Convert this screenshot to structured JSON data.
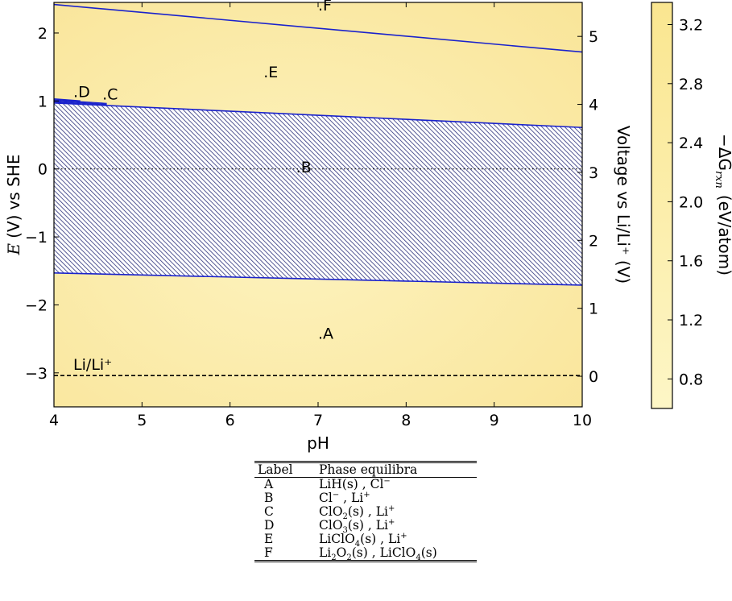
{
  "chart_data": {
    "type": "area",
    "xlabel": "pH",
    "ylabel_main": "vs SHE",
    "ylabel_italic": "E",
    "ylabel_unit": "(V)",
    "ylabel_right": "Voltage vs Li/Li⁺ (V)",
    "colorbar_label_prefix": "−ΔG",
    "colorbar_label_sub": "rxn",
    "colorbar_label_suffix": "(eV/atom)",
    "xlim": [
      4,
      10
    ],
    "ylim": [
      -3.5,
      2.45
    ],
    "y2lim": [
      -0.45,
      5.5
    ],
    "colorbar_range": [
      0.6,
      3.35
    ],
    "xticks": [
      4,
      5,
      6,
      7,
      8,
      9,
      10
    ],
    "xtick_labels": [
      "4",
      "5",
      "6",
      "7",
      "8",
      "9",
      "10"
    ],
    "yticks": [
      -3,
      -2,
      -1,
      0,
      1,
      2
    ],
    "ytick_labels": [
      "−3",
      "−2",
      "−1",
      "0",
      "1",
      "2"
    ],
    "y2ticks": [
      0,
      1,
      2,
      3,
      4,
      5
    ],
    "y2tick_labels": [
      "0",
      "1",
      "2",
      "3",
      "4",
      "5"
    ],
    "colorbar_ticks": [
      0.8,
      1.2,
      1.6,
      2.0,
      2.4,
      2.8,
      3.2
    ],
    "colorbar_tick_labels": [
      "0.8",
      "1.2",
      "1.6",
      "2.0",
      "2.4",
      "2.8",
      "3.2"
    ],
    "colors": {
      "background": "#fbeeac",
      "boundary": "#1a22cc",
      "hatch": "#2a2f7a",
      "colorbar_top": "#fae690",
      "colorbar_bottom": "#fdf6c6"
    },
    "boundaries": [
      {
        "name": "E/F",
        "x": [
          4,
          10
        ],
        "y": [
          2.42,
          1.72
        ]
      },
      {
        "name": "D/E",
        "x": [
          4,
          4.3
        ],
        "y": [
          1.03,
          1.0
        ]
      },
      {
        "name": "C/E",
        "x": [
          4,
          4.6
        ],
        "y": [
          1.0,
          0.95
        ]
      },
      {
        "name": "B/E",
        "x": [
          4,
          10
        ],
        "y": [
          0.97,
          0.61
        ]
      },
      {
        "name": "A/B",
        "x": [
          4,
          10
        ],
        "y": [
          -1.53,
          -1.71
        ]
      }
    ],
    "hatched_region": {
      "label": "B",
      "x": [
        4,
        10
      ],
      "y_top": [
        0.97,
        0.61
      ],
      "y_bottom": [
        -1.53,
        -1.71
      ]
    },
    "reference_lines": [
      {
        "name": "zero",
        "y": 0,
        "style": "dotted"
      },
      {
        "name": "li",
        "y": -3.04,
        "style": "dashed",
        "label": "Li/Li⁺"
      }
    ],
    "region_labels": [
      {
        "text": ".A",
        "x": 7.0,
        "y": -2.5
      },
      {
        "text": ".B",
        "x": 6.75,
        "y": -0.05
      },
      {
        "text": ".C",
        "x": 4.55,
        "y": 1.02
      },
      {
        "text": ".D",
        "x": 4.22,
        "y": 1.06
      },
      {
        "text": ".E",
        "x": 6.38,
        "y": 1.35
      },
      {
        "text": ".F",
        "x": 7.0,
        "y": 2.33
      }
    ]
  },
  "table": {
    "header": {
      "label": "Label",
      "phase": "Phase equilibra"
    },
    "rows": [
      {
        "label": "A",
        "parts": [
          [
            "t",
            "LiH(s) , Cl"
          ],
          [
            "sup",
            "−"
          ]
        ]
      },
      {
        "label": "B",
        "parts": [
          [
            "t",
            "Cl"
          ],
          [
            "sup",
            "−"
          ],
          [
            "t",
            " , Li"
          ],
          [
            "sup",
            "+"
          ]
        ]
      },
      {
        "label": "C",
        "parts": [
          [
            "t",
            "ClO"
          ],
          [
            "sub",
            "2"
          ],
          [
            "t",
            "(s) , Li"
          ],
          [
            "sup",
            "+"
          ]
        ]
      },
      {
        "label": "D",
        "parts": [
          [
            "t",
            "ClO"
          ],
          [
            "sub",
            "3"
          ],
          [
            "t",
            "(s) , Li"
          ],
          [
            "sup",
            "+"
          ]
        ]
      },
      {
        "label": "E",
        "parts": [
          [
            "t",
            "LiClO"
          ],
          [
            "sub",
            "4"
          ],
          [
            "t",
            "(s) , Li"
          ],
          [
            "sup",
            "+"
          ]
        ]
      },
      {
        "label": "F",
        "parts": [
          [
            "t",
            "Li"
          ],
          [
            "sub",
            "2"
          ],
          [
            "t",
            "O"
          ],
          [
            "sub",
            "2"
          ],
          [
            "t",
            "(s) , LiClO"
          ],
          [
            "sub",
            "4"
          ],
          [
            "t",
            "(s)"
          ]
        ]
      }
    ]
  }
}
